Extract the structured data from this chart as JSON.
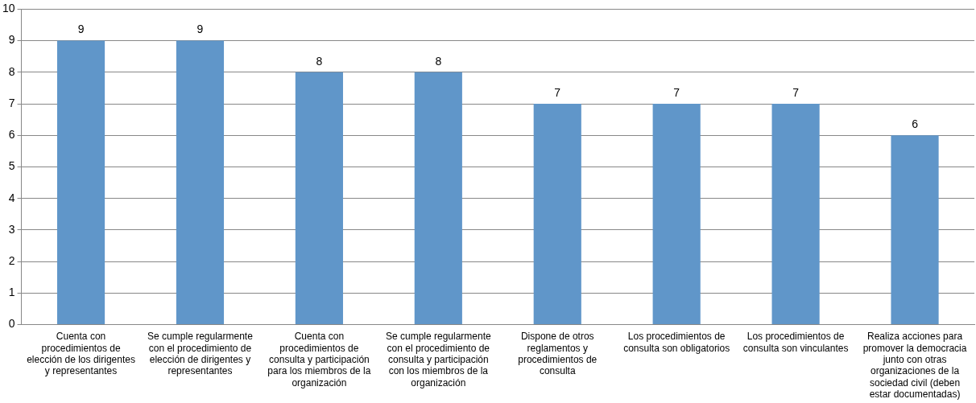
{
  "chart_data": {
    "type": "bar",
    "categories": [
      "Cuenta con procedimientos de elección de los dirigentes y representantes",
      "Se cumple regularmente con el procedimiento de elección de dirigentes y representantes",
      "Cuenta con procedimientos de consulta y participación para los miembros de la organización",
      "Se cumple regularmente con el procedimiento de consulta y participación con los miembros de la organización",
      "Dispone de otros reglamentos y procedimientos de consulta",
      "Los procedimientos de consulta son obligatorios",
      "Los procedimientos de consulta son vinculantes",
      "Realiza acciones para promover la democracia junto con otras organizaciones de la sociedad civil (deben estar documentadas)"
    ],
    "values": [
      9,
      9,
      8,
      8,
      7,
      7,
      7,
      6
    ],
    "color": "#6096c9",
    "ylim": [
      0,
      10
    ],
    "yticks": [
      0,
      1,
      2,
      3,
      4,
      5,
      6,
      7,
      8,
      9,
      10
    ],
    "grid": "y",
    "data_labels": true
  }
}
